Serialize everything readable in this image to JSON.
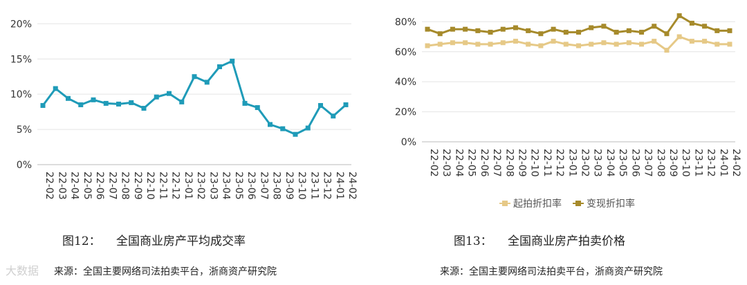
{
  "chart_data": [
    {
      "type": "line",
      "categories": [
        "22-02",
        "22-03",
        "22-04",
        "22-05",
        "22-06",
        "22-07",
        "22-08",
        "22-09",
        "22-10",
        "22-11",
        "22-12",
        "23-01",
        "23-02",
        "23-03",
        "23-04",
        "23-05",
        "23-06",
        "23-07",
        "23-08",
        "23-09",
        "23-10",
        "23-11",
        "23-12",
        "24-01",
        "24-02"
      ],
      "series": [
        {
          "name": "",
          "color": "#1f9bb8",
          "values": [
            8.4,
            10.8,
            9.4,
            8.5,
            9.2,
            8.7,
            8.6,
            8.8,
            8.0,
            9.6,
            10.1,
            8.9,
            12.5,
            11.7,
            13.9,
            14.7,
            8.7,
            8.1,
            5.7,
            5.1,
            4.3,
            5.2,
            8.4,
            6.9,
            8.5
          ]
        }
      ],
      "yticks": [
        "0%",
        "5%",
        "10%",
        "15%",
        "20%"
      ],
      "ylim": [
        0,
        22
      ],
      "grid": "horizontal"
    },
    {
      "type": "line",
      "categories": [
        "22-02",
        "22-03",
        "22-04",
        "22-05",
        "22-06",
        "22-07",
        "22-08",
        "22-09",
        "22-10",
        "22-11",
        "22-12",
        "23-01",
        "23-02",
        "23-03",
        "23-04",
        "23-05",
        "23-06",
        "23-07",
        "23-08",
        "23-09",
        "23-10",
        "23-11",
        "23-12",
        "24-01",
        "24-02"
      ],
      "series": [
        {
          "name": "起拍折扣率",
          "color": "#e6c987",
          "values": [
            64,
            65,
            66,
            66,
            65,
            65,
            66,
            67,
            65,
            64,
            67,
            65,
            64,
            65,
            66,
            65,
            66,
            65,
            67,
            61,
            70,
            67,
            67,
            65,
            65
          ]
        },
        {
          "name": "变现折扣率",
          "color": "#a68a2b",
          "values": [
            75,
            72,
            75,
            75,
            74,
            73,
            75,
            76,
            74,
            72,
            75,
            73,
            73,
            76,
            77,
            73,
            74,
            73,
            77,
            72,
            84,
            79,
            77,
            74,
            74
          ]
        }
      ],
      "yticks": [
        "0%",
        "20%",
        "40%",
        "60%",
        "80%"
      ],
      "ylim": [
        0,
        88
      ],
      "legend": "bottom",
      "grid": "horizontal"
    }
  ],
  "captions": {
    "left_label": "图12：",
    "left_title": "全国商业房产平均成交率",
    "right_label": "图13：",
    "right_title": "全国商业房产拍卖价格"
  },
  "sources": {
    "left": "来源：全国主要网络司法拍卖平台，浙商资产研究院",
    "right": "来源：全国主要网络司法拍卖平台，浙商资产研究院"
  },
  "watermark": "大数据"
}
